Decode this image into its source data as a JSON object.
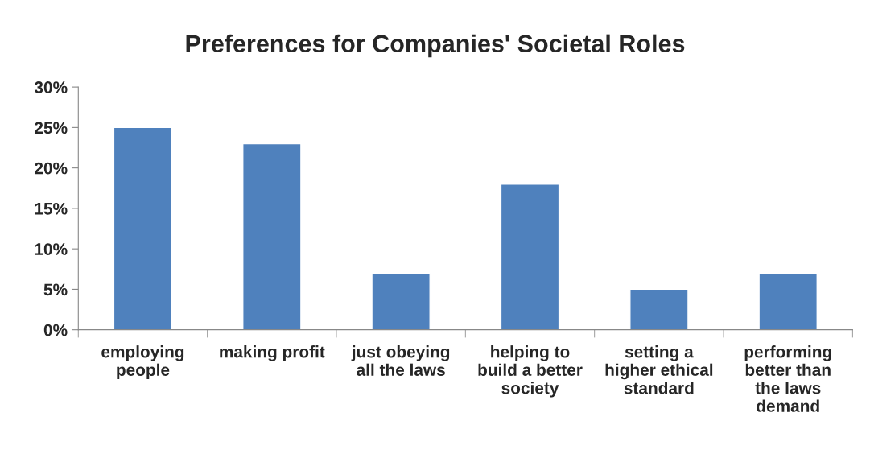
{
  "chart_data": {
    "type": "bar",
    "title": "Preferences for Companies' Societal Roles",
    "categories": [
      "employing\npeople",
      "making profit",
      "just obeying\nall the laws",
      "helping to\nbuild a better\nsociety",
      "setting a\nhigher ethical\nstandard",
      "performing\nbetter than\nthe laws\ndemand"
    ],
    "values": [
      25,
      23,
      7,
      18,
      5,
      7
    ],
    "color": "#4f81bd",
    "ylim": [
      0,
      30
    ],
    "yticks": [
      {
        "value": 0,
        "label": "0%"
      },
      {
        "value": 5,
        "label": "5%"
      },
      {
        "value": 10,
        "label": "10%"
      },
      {
        "value": 15,
        "label": "15%"
      },
      {
        "value": 20,
        "label": "20%"
      },
      {
        "value": 25,
        "label": "25%"
      },
      {
        "value": 30,
        "label": "30%"
      }
    ],
    "grid": false,
    "legend": false
  }
}
